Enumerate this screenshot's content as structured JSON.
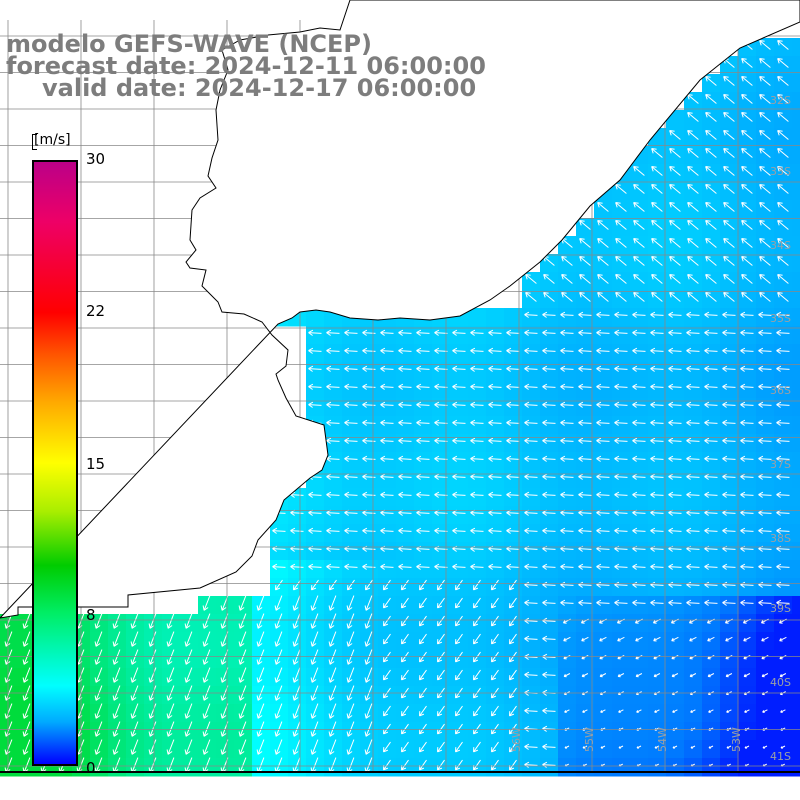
{
  "titles": {
    "line1": "modelo GEFS-WAVE (NCEP)",
    "line2": "forecast date: 2024-12-11 06:00:00",
    "line3": "valid date: 2024-12-17 06:00:00"
  },
  "colorbar": {
    "units": "[m/s]",
    "ticks": [
      "30",
      "22",
      "15",
      "8",
      "0"
    ]
  },
  "grid": {
    "lon_labels": [
      "56W",
      "55W",
      "54W",
      "53W",
      "52W",
      "51W"
    ],
    "lat_labels": [
      "32S",
      "33S",
      "34S",
      "35S",
      "36S",
      "37S",
      "38S",
      "39S",
      "40S",
      "41S"
    ]
  },
  "colors": {
    "title": "#7d7d7d",
    "grid": "#888888",
    "coast": "#000000",
    "arrows": "#ffffff"
  }
}
